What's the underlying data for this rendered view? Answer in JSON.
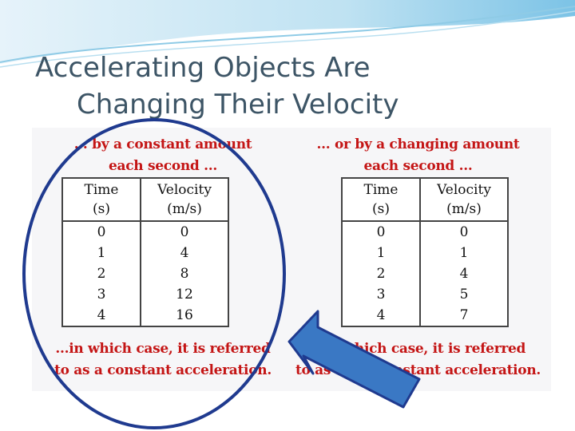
{
  "title_line1": "Accelerating Objects Are",
  "title_line2": "Changing Their Velocity",
  "left": {
    "caption_top_1": "... by a constant amount",
    "caption_top_2": "each second ...",
    "headers": [
      [
        "Time",
        "(s)"
      ],
      [
        "Velocity",
        "(m/s)"
      ]
    ],
    "rows": [
      [
        "0",
        "0"
      ],
      [
        "1",
        "4"
      ],
      [
        "2",
        "8"
      ],
      [
        "3",
        "12"
      ],
      [
        "4",
        "16"
      ]
    ],
    "caption_bottom_1": "...in which case, it is referred",
    "caption_bottom_2": "to as a constant acceleration."
  },
  "right": {
    "caption_top_1": "... or by a changing amount",
    "caption_top_2": "each second ...",
    "headers": [
      [
        "Time",
        "(s)"
      ],
      [
        "Velocity",
        "(m/s)"
      ]
    ],
    "rows": [
      [
        "0",
        "0"
      ],
      [
        "1",
        "1"
      ],
      [
        "2",
        "4"
      ],
      [
        "3",
        "5"
      ],
      [
        "4",
        "7"
      ]
    ],
    "caption_bottom_1": "...in which case, it is referred",
    "caption_bottom_2": "to as a nonconstant acceleration."
  },
  "colors": {
    "title": "#3d5566",
    "caption": "#c41515",
    "ellipse": "#1f3a8f",
    "arrow_fill": "#3a78c4",
    "arrow_stroke": "#1f3a8f"
  },
  "icons": {
    "arrow": "arrow-up-left-icon"
  }
}
